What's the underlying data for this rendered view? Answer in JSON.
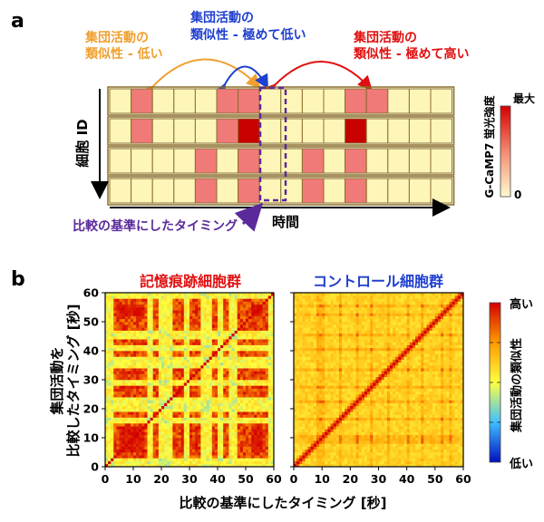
{
  "panel_a": {
    "letter": "a",
    "label_low": [
      "集団活動の",
      "類似性 - 低い"
    ],
    "label_very_low": [
      "集団活動の",
      "類似性 - 極めて低い"
    ],
    "label_very_high": [
      "集団活動の",
      "類似性 - 極めて高い"
    ],
    "y_axis_label": "細胞 ID",
    "x_axis_label": "時間",
    "reference_label": "比較の基準にしたタイミング",
    "colorbar_title": "G-CaMP7 蛍光強度",
    "colorbar_max": "最大",
    "colorbar_min": "0",
    "grid": [
      [
        0,
        1,
        0,
        0,
        0,
        1,
        1,
        0,
        0,
        0,
        0,
        1,
        1,
        0,
        0,
        0
      ],
      [
        0,
        1,
        0,
        0,
        0,
        1,
        2,
        0,
        0,
        0,
        0,
        2,
        0,
        0,
        0,
        0
      ],
      [
        0,
        0,
        0,
        0,
        1,
        0,
        1,
        0,
        0,
        1,
        0,
        1,
        0,
        0,
        0,
        0
      ],
      [
        0,
        0,
        0,
        0,
        1,
        0,
        1,
        0,
        0,
        1,
        0,
        1,
        0,
        0,
        0,
        0
      ]
    ]
  },
  "panel_b": {
    "letter": "b",
    "left_title": "記憶痕跡細胞群",
    "right_title": "コントロール細胞群",
    "y_axis_label": [
      "集団活動を",
      "比較したタイミング [秒]"
    ],
    "x_axis_label": "比較の基準にしたタイミング [秒]",
    "colorbar_label": "集団活動の類似性",
    "colorbar_high": "高い",
    "colorbar_low": "低い",
    "left_x_ticks": [
      "0",
      "10",
      "20",
      "30",
      "40",
      "50",
      "60"
    ],
    "right_x_ticks": [
      "0",
      "10",
      "20",
      "30",
      "40",
      "50",
      "60"
    ],
    "y_ticks": [
      "0",
      "10",
      "20",
      "30",
      "40",
      "50",
      "60"
    ]
  },
  "colors": {
    "cell_low": "#fdf6b8",
    "cell_mid": "#f07a78",
    "cell_high": "#c80000",
    "cell_border": "#8a6e2a",
    "orange": "#f0a030",
    "blue": "#1f3fd0",
    "red": "#e01010",
    "purple": "#5a2a9a"
  },
  "chart_data": [
    {
      "type": "heatmap",
      "title": "記憶痕跡細胞群",
      "xlabel": "比較の基準にしたタイミング [秒]",
      "ylabel": "集団活動を比較したタイミング [秒]",
      "xlim": [
        0,
        60
      ],
      "ylim": [
        0,
        60
      ],
      "colorbar": [
        "低い",
        "高い"
      ]
    },
    {
      "type": "heatmap",
      "title": "コントロール細胞群",
      "xlabel": "比較の基準にしたタイミング [秒]",
      "xlim": [
        0,
        60
      ],
      "ylim": [
        0,
        60
      ],
      "colorbar": [
        "低い",
        "高い"
      ]
    }
  ]
}
